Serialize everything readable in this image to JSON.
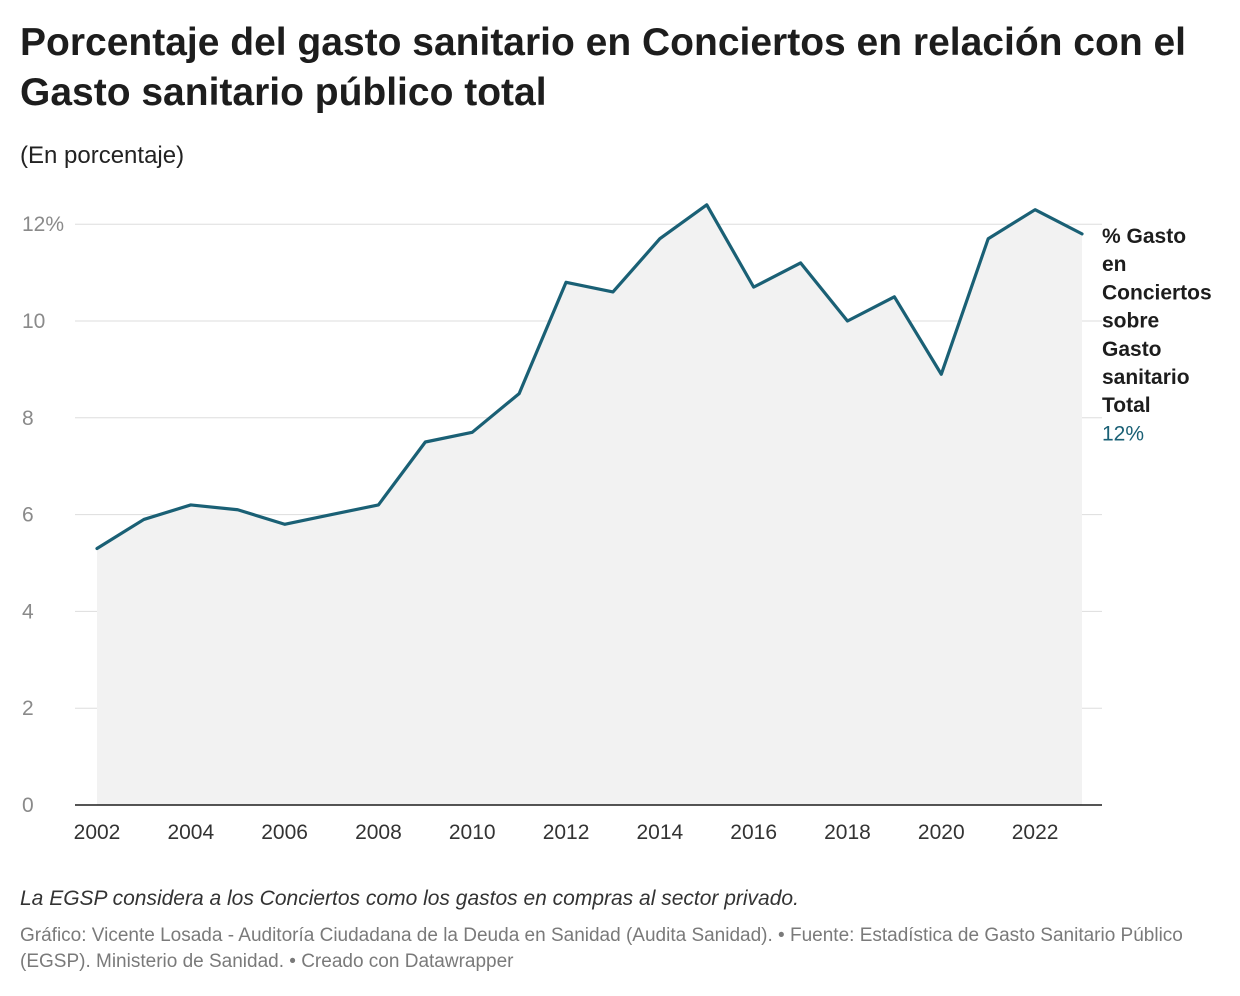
{
  "header": {
    "title": "Porcentaje del gasto sanitario en Conciertos en relación con el Gasto sanitario público total",
    "subtitle": "(En porcentaje)"
  },
  "footer": {
    "note": "La EGSP considera a los Conciertos como los gastos en compras al sector privado.",
    "source": "Gráfico: Vicente Losada - Auditoría Ciudadana de la Deuda en Sanidad (Audita Sanidad). • Fuente: Estadística de Gasto Sanitario Público (EGSP). Ministerio de Sanidad. • Creado con Datawrapper"
  },
  "colors": {
    "line": "#1a6075",
    "area": "#f2f2f2",
    "grid": "#dddddd",
    "axis": "#1d1d1d"
  },
  "chart_data": {
    "type": "area",
    "x": [
      2002,
      2003,
      2004,
      2005,
      2006,
      2007,
      2008,
      2009,
      2010,
      2011,
      2012,
      2013,
      2014,
      2015,
      2016,
      2017,
      2018,
      2019,
      2020,
      2021,
      2022,
      2023
    ],
    "series": [
      {
        "name": "% Gasto en Conciertos sobre Gasto sanitario Total",
        "values": [
          5.3,
          5.9,
          6.2,
          6.1,
          5.8,
          6.0,
          6.2,
          7.5,
          7.7,
          8.5,
          10.8,
          10.6,
          11.7,
          12.4,
          10.7,
          11.2,
          10.0,
          10.5,
          8.9,
          11.7,
          12.3,
          11.8
        ]
      }
    ],
    "ylim": [
      0,
      12.5
    ],
    "y_ticks": [
      {
        "value": 0,
        "label": "0"
      },
      {
        "value": 2,
        "label": "2"
      },
      {
        "value": 4,
        "label": "4"
      },
      {
        "value": 6,
        "label": "6"
      },
      {
        "value": 8,
        "label": "8"
      },
      {
        "value": 10,
        "label": "10"
      },
      {
        "value": 12,
        "label": "12%"
      }
    ],
    "x_ticks": [
      2002,
      2004,
      2006,
      2008,
      2010,
      2012,
      2014,
      2016,
      2018,
      2020,
      2022
    ],
    "series_label_lines": [
      "% Gasto",
      "en",
      "Conciertos",
      "sobre",
      "Gasto",
      "sanitario",
      "Total"
    ],
    "last_value_label": "12%",
    "grid": true,
    "legend": "right"
  }
}
